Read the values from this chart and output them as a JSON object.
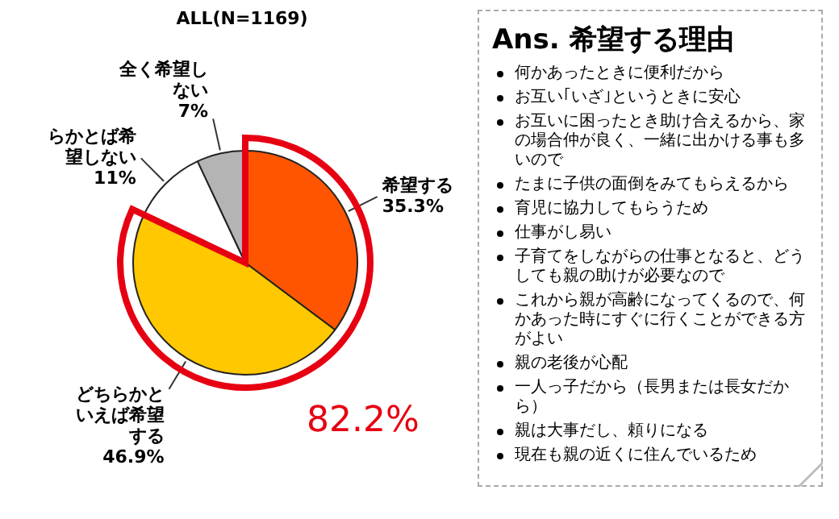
{
  "chart_data": [
    {
      "type": "pie",
      "title": "ALL(N=1169)",
      "categories": [
        "希望する",
        "どちらかといえば希望する",
        "らかとば希望しない",
        "全く希望しない"
      ],
      "values": [
        35.3,
        46.9,
        11,
        7
      ],
      "colors": [
        "#ff5500",
        "#ffc800",
        "#ffffff",
        "#b4b4b4"
      ],
      "value_labels": [
        "35.3%",
        "46.9%",
        "11%",
        "7%"
      ],
      "annotations": [
        "82.2%"
      ]
    },
    {
      "type": "other",
      "title": "Ans. 希望する理由",
      "annotations": [
        "何かあったときに便利だから",
        "お互い｢いざ｣というときに安心",
        "お互いに困ったとき助け合えるから、家の場合仲が良く、一緒に出かける事も多いので",
        "たまに子供の面倒をみてもらえるから",
        "育児に協力してもらうため",
        "仕事がし易い",
        "子育てをしながらの仕事となると、どうしても親の助けが必要なので",
        "これから親が高齢になってくるので、何かあった時にすぐに行くことができる方がよい",
        "親の老後が心配",
        "一人っ子だから（長男または長女だから）",
        "親は大事だし、頼りになる",
        "現在も親の近くに住んでいるため"
      ]
    }
  ]
}
